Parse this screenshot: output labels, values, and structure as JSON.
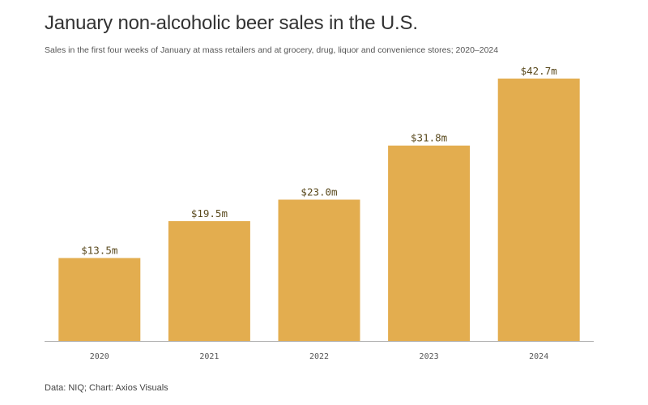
{
  "title": "January non-alcoholic beer sales in the U.S.",
  "subtitle": "Sales in the first four weeks of January at mass retailers and at grocery, drug, liquor and convenience stores; 2020–2024",
  "source": "Data: NIQ; Chart: Axios Visuals",
  "colors": {
    "bar": "#e3ad4f",
    "baseline": "#b3b3b3"
  },
  "chart_data": {
    "type": "bar",
    "title": "January non-alcoholic beer sales in the U.S.",
    "subtitle": "Sales in the first four weeks of January at mass retailers and at grocery, drug, liquor and convenience stores; 2020–2024",
    "categories": [
      "2020",
      "2021",
      "2022",
      "2023",
      "2024"
    ],
    "values": [
      13.5,
      19.5,
      23.0,
      31.8,
      42.7
    ],
    "data_labels": [
      "$13.5m",
      "$19.5m",
      "$23.0m",
      "$31.8m",
      "$42.7m"
    ],
    "unit": "millions USD",
    "xlabel": "",
    "ylabel": "",
    "ylim": [
      0,
      42.7
    ],
    "grid": false,
    "legend": "none"
  }
}
